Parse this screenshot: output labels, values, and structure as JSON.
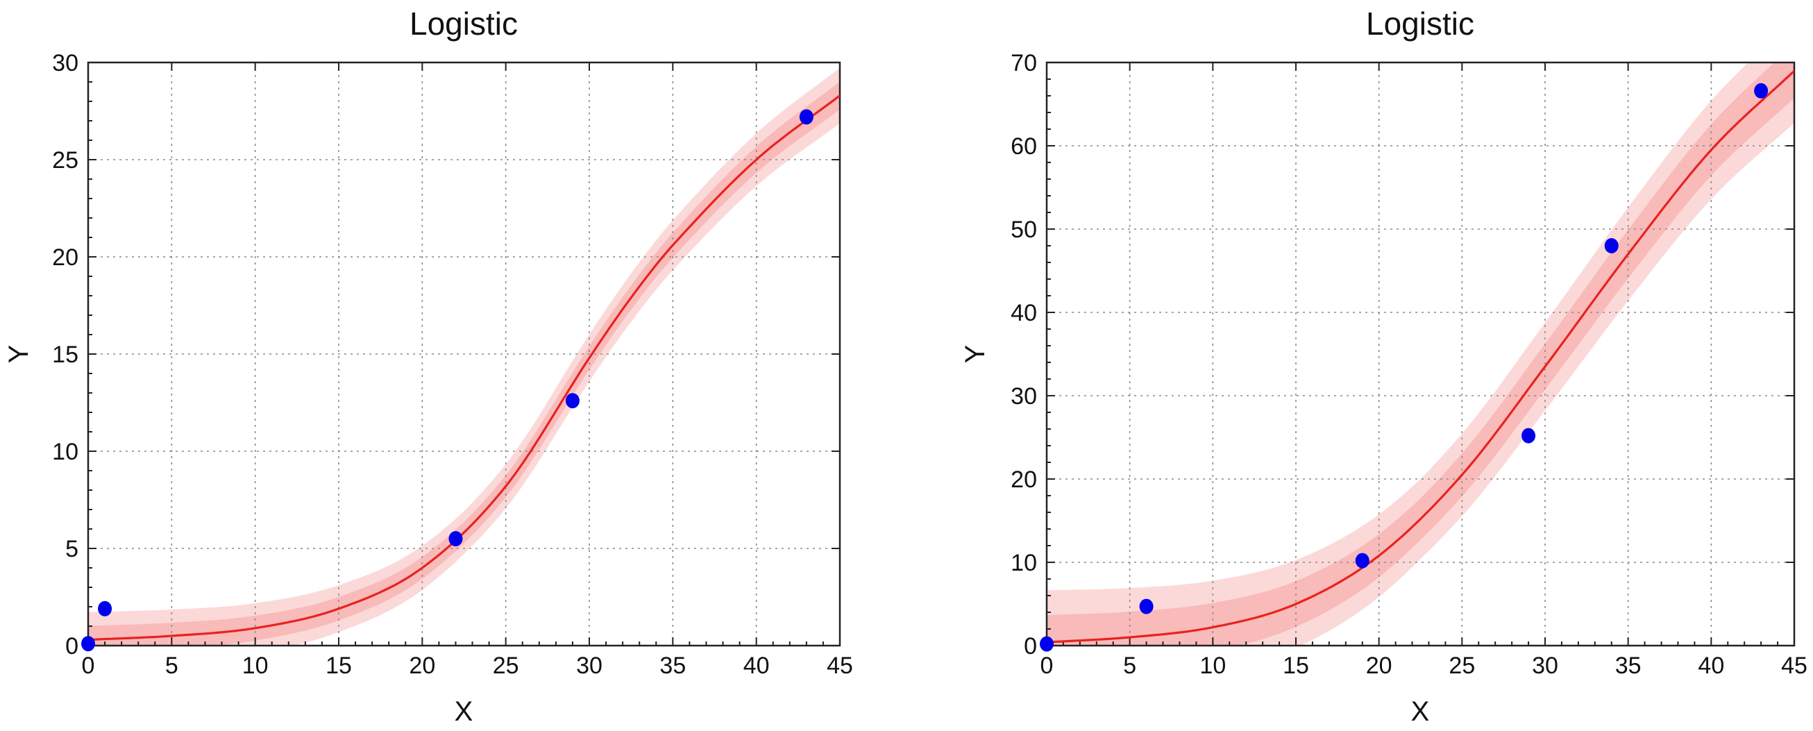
{
  "chart_data": [
    {
      "type": "scatter",
      "title": "Logistic",
      "xlabel": "X",
      "ylabel": "Y",
      "xlim": [
        0,
        45
      ],
      "ylim": [
        0,
        30
      ],
      "xticks": [
        "0",
        "5",
        "10",
        "15",
        "20",
        "25",
        "30",
        "35",
        "40",
        "45"
      ],
      "yticks": [
        "0",
        "5",
        "10",
        "15",
        "20",
        "25",
        "30"
      ],
      "grid": true,
      "series": [
        {
          "type": "scatter",
          "x": [
            0,
            1,
            22,
            29,
            43
          ],
          "y": [
            0.1,
            1.9,
            5.5,
            12.6,
            27.2
          ],
          "color": "#0000ee"
        },
        {
          "type": "fit-line",
          "model": "logistic",
          "color": "#e8221f",
          "x": [
            0,
            5,
            10,
            15,
            20,
            25,
            30,
            32.5,
            35,
            40,
            45
          ],
          "y": [
            0.3,
            0.5,
            0.9,
            1.9,
            4.0,
            8.2,
            14.8,
            17.9,
            20.6,
            25.0,
            28.3
          ],
          "band_inner": 0.55,
          "band_outer": 1.1
        }
      ],
      "colors": {
        "point": "#0000ee",
        "fit": "#e8221f",
        "band_inner": "#f8b4b4",
        "band_outer": "#fcd9d9"
      }
    },
    {
      "type": "scatter",
      "title": "Logistic",
      "xlabel": "X",
      "ylabel": "Y",
      "xlim": [
        0,
        45
      ],
      "ylim": [
        0,
        70
      ],
      "xticks": [
        "0",
        "5",
        "10",
        "15",
        "20",
        "25",
        "30",
        "35",
        "40",
        "45"
      ],
      "yticks": [
        "0",
        "10",
        "20",
        "30",
        "40",
        "50",
        "60",
        "70"
      ],
      "grid": true,
      "series": [
        {
          "type": "scatter",
          "x": [
            0,
            6,
            19,
            29,
            34,
            43
          ],
          "y": [
            0.2,
            4.7,
            10.2,
            25.2,
            48.0,
            66.6
          ],
          "color": "#0000ee"
        },
        {
          "type": "fit-line",
          "model": "logistic",
          "color": "#e8221f",
          "x": [
            0,
            5,
            10,
            15,
            20,
            25,
            30,
            35,
            40,
            45
          ],
          "y": [
            0.4,
            1.0,
            2.2,
            5.0,
            10.8,
            20.5,
            33.5,
            47.0,
            59.5,
            69.0
          ],
          "band_inner": 2.5,
          "band_outer": 4.8
        }
      ],
      "colors": {
        "point": "#0000ee",
        "fit": "#e8221f",
        "band_inner": "#f8b4b4",
        "band_outer": "#fcd9d9"
      }
    }
  ]
}
